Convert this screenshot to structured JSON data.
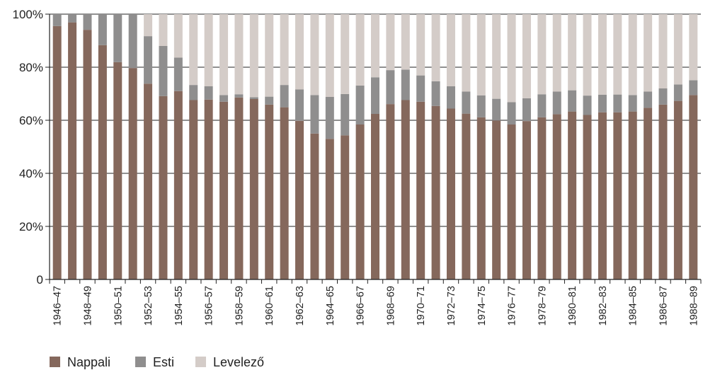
{
  "chart_data": {
    "type": "bar",
    "stacked": true,
    "title": "",
    "xlabel": "",
    "ylabel": "",
    "ylim": [
      0,
      100
    ],
    "yticks": [
      "0",
      "20%",
      "40%",
      "60%",
      "80%",
      "100%"
    ],
    "grid": true,
    "legend_position": "bottom-left",
    "categories": [
      "1946–47",
      "1947–48",
      "1948–49",
      "1949–50",
      "1950–51",
      "1951–52",
      "1952–53",
      "1953–54",
      "1954–55",
      "1955–56",
      "1956–57",
      "1957–58",
      "1958–59",
      "1959–60",
      "1960–61",
      "1961–62",
      "1962–63",
      "1963–64",
      "1964–65",
      "1965–66",
      "1966–67",
      "1967–68",
      "1968–69",
      "1969–70",
      "1970–71",
      "1971–72",
      "1972–73",
      "1973–74",
      "1974–75",
      "1975–76",
      "1976–77",
      "1977–78",
      "1978–79",
      "1979–80",
      "1980–81",
      "1981–82",
      "1982–83",
      "1983–84",
      "1984–85",
      "1985–86",
      "1986–87",
      "1987–88",
      "1988–89"
    ],
    "x_tick_labels": [
      "1946–47",
      "1948–49",
      "1950–51",
      "1952–53",
      "1954–55",
      "1956–57",
      "1958–59",
      "1960–61",
      "1962–63",
      "1964–65",
      "1966–67",
      "1968–69",
      "1970–71",
      "1972–73",
      "1974–75",
      "1976–77",
      "1978–79",
      "1980–81",
      "1982–83",
      "1984–85",
      "1986–87",
      "1988–89"
    ],
    "series": [
      {
        "name": "Nappali",
        "color": "#85685c",
        "values": [
          95.5,
          96.9,
          94.1,
          88.3,
          81.9,
          79.7,
          73.8,
          69.1,
          71.0,
          67.6,
          67.8,
          67.0,
          68.6,
          68.0,
          65.9,
          64.9,
          59.8,
          55.0,
          53.0,
          54.3,
          58.4,
          62.4,
          66.1,
          67.6,
          67.0,
          65.4,
          64.4,
          62.5,
          61.1,
          59.9,
          58.4,
          59.7,
          61.1,
          62.3,
          63.3,
          62.0,
          63.0,
          63.0,
          63.3,
          64.7,
          65.9,
          67.3,
          69.5
        ]
      },
      {
        "name": "Esti",
        "color": "#8f8e8e",
        "values": [
          4.5,
          3.1,
          5.9,
          11.7,
          18.1,
          20.3,
          17.9,
          18.9,
          12.6,
          5.7,
          5.0,
          2.5,
          1.2,
          0.7,
          3.0,
          8.4,
          11.8,
          14.5,
          15.8,
          15.6,
          14.7,
          13.8,
          12.8,
          11.5,
          9.9,
          9.3,
          8.4,
          8.3,
          8.3,
          8.2,
          8.4,
          8.6,
          8.7,
          8.5,
          8.0,
          7.3,
          6.6,
          6.7,
          6.2,
          6.1,
          6.1,
          6.2,
          5.6
        ]
      },
      {
        "name": "Levelező",
        "color": "#d4ccc8",
        "values": [
          0,
          0,
          0,
          0,
          0,
          0,
          8.3,
          12.0,
          16.4,
          26.7,
          27.2,
          30.5,
          30.2,
          31.3,
          31.1,
          26.7,
          28.4,
          30.5,
          31.2,
          30.1,
          26.9,
          23.8,
          21.1,
          20.9,
          23.1,
          25.3,
          27.2,
          29.2,
          30.6,
          31.9,
          33.2,
          31.7,
          30.2,
          29.2,
          28.7,
          30.7,
          30.4,
          30.3,
          30.5,
          29.2,
          28.0,
          26.5,
          24.9
        ]
      }
    ]
  }
}
